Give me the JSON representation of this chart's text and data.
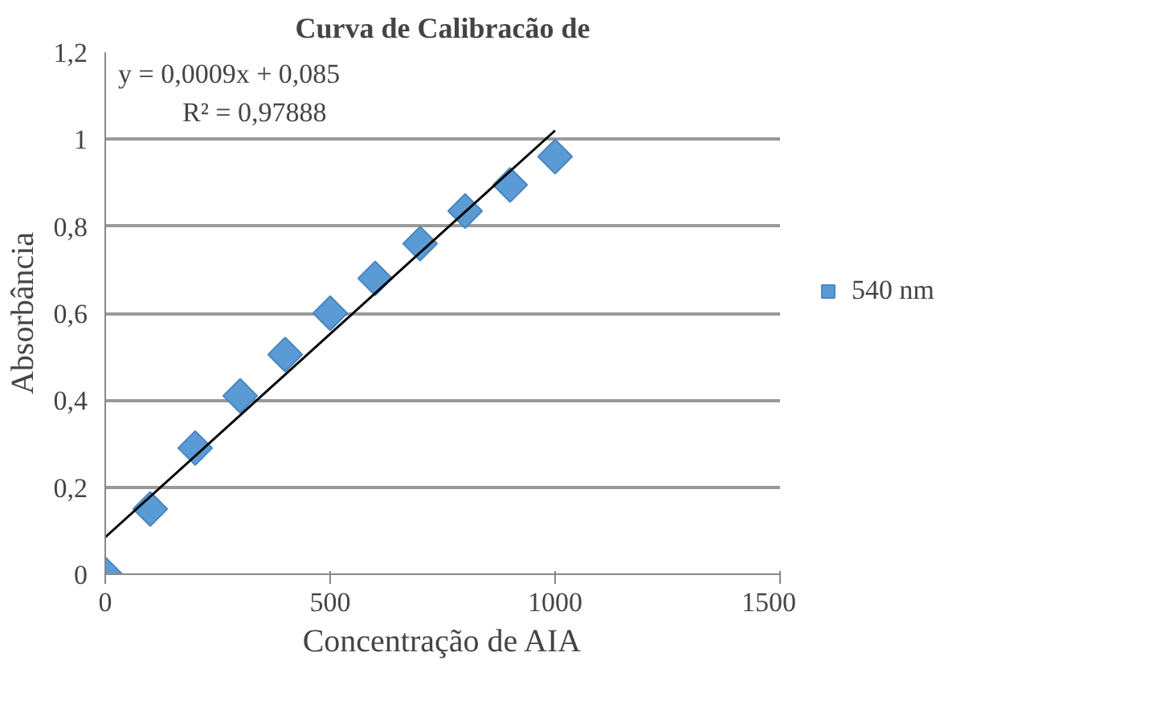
{
  "chart_data": {
    "type": "scatter",
    "title": "Curva de Calibracão de",
    "xlabel": "Concentração de AIA",
    "ylabel": "Absorbância",
    "x": [
      0,
      100,
      200,
      300,
      400,
      500,
      600,
      700,
      800,
      900,
      1000
    ],
    "series": [
      {
        "name": "540 nm",
        "color": "#5b9bd5",
        "values": [
          0,
          0.15,
          0.29,
          0.41,
          0.505,
          0.6,
          0.68,
          0.76,
          0.835,
          0.895,
          0.96
        ],
        "marker": "diamond"
      },
      {
        "type": "line",
        "color": "#000000",
        "x": [
          0,
          1000
        ],
        "values": [
          0.085,
          1.02
        ]
      }
    ],
    "xlim": [
      0,
      1500
    ],
    "xticks": [
      0,
      500,
      1000,
      1500
    ],
    "ylim": [
      0,
      1.2
    ],
    "yticks": [
      0,
      {
        "value": 0.2,
        "label": "0,2"
      },
      {
        "value": 0.4,
        "label": "0,4"
      },
      {
        "value": 0.6,
        "label": "0,6"
      },
      {
        "value": 0.8,
        "label": "0,8"
      },
      1,
      {
        "value": 1.2,
        "label": "1,2"
      }
    ],
    "grid": "y",
    "legend": "right",
    "annotations": [
      "y = 0,0009x + 0,085",
      "R² = 0,97888"
    ]
  }
}
